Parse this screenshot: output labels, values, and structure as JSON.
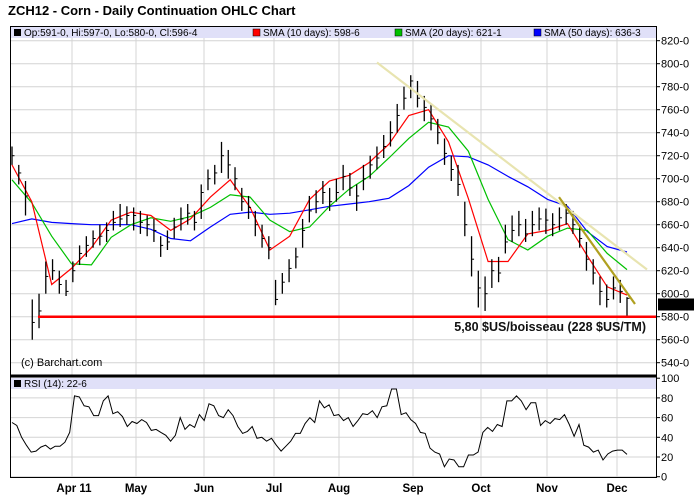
{
  "chart_data": {
    "type": "ohlc",
    "title": "ZCH12 - Corn - Daily Continuation OHLC Chart",
    "legend": {
      "ohlc": "Op:591-0, Hi:597-0, Lo:580-0, Cl:596-4",
      "sma10": "SMA (10 days): 598-6",
      "sma20": "SMA (20 days): 621-1",
      "sma50": "SMA (50 days): 636-3",
      "rsi": "RSI (14): 22-6"
    },
    "colors": {
      "bars": "#000000",
      "sma10": "#ff0000",
      "sma20": "#00c000",
      "sma50": "#0000ff",
      "support": "#ff0000",
      "trend_long": "#e8e4b0",
      "trend_short": "#b0a020",
      "panel_header": "#e0e0f8",
      "grid": "#d4d4d4"
    },
    "x_tick_labels": [
      "Apr 11",
      "May",
      "Jun",
      "Jul",
      "Aug",
      "Sep",
      "Oct",
      "Nov",
      "Dec"
    ],
    "price_axis": {
      "ylim": [
        530,
        830
      ],
      "ticks": [
        540,
        560,
        580,
        600,
        620,
        640,
        660,
        680,
        700,
        720,
        740,
        760,
        780,
        800,
        820
      ],
      "tick_labels": [
        "540-0",
        "560-0",
        "580-0",
        "600-0",
        "620-0",
        "640-0",
        "660-0",
        "680-0",
        "700-0",
        "720-0",
        "740-0",
        "760-0",
        "780-0",
        "800-0",
        "820-0"
      ],
      "last_price_label": "596-4",
      "last_price": 596.5
    },
    "rsi_axis": {
      "ylim": [
        0,
        100
      ],
      "ticks": [
        0,
        20,
        40,
        60,
        80,
        100
      ],
      "tick_labels": [
        "0",
        "20",
        "40",
        "60",
        "80",
        "100"
      ]
    },
    "bars_hlc": [
      [
        728,
        712,
        720
      ],
      [
        712,
        695,
        705
      ],
      [
        698,
        668,
        685
      ],
      [
        595,
        560,
        575
      ],
      [
        600,
        570,
        585
      ],
      [
        628,
        600,
        615
      ],
      [
        630,
        612,
        620
      ],
      [
        620,
        600,
        608
      ],
      [
        612,
        598,
        602
      ],
      [
        628,
        610,
        620
      ],
      [
        642,
        625,
        635
      ],
      [
        650,
        632,
        642
      ],
      [
        655,
        640,
        648
      ],
      [
        660,
        642,
        650
      ],
      [
        662,
        645,
        655
      ],
      [
        672,
        655,
        662
      ],
      [
        678,
        658,
        665
      ],
      [
        676,
        660,
        668
      ],
      [
        675,
        655,
        668
      ],
      [
        672,
        652,
        662
      ],
      [
        668,
        650,
        660
      ],
      [
        665,
        645,
        655
      ],
      [
        650,
        632,
        642
      ],
      [
        655,
        638,
        645
      ],
      [
        666,
        648,
        658
      ],
      [
        675,
        655,
        665
      ],
      [
        678,
        660,
        670
      ],
      [
        672,
        655,
        662
      ],
      [
        695,
        665,
        688
      ],
      [
        708,
        690,
        700
      ],
      [
        712,
        695,
        705
      ],
      [
        732,
        705,
        720
      ],
      [
        725,
        700,
        712
      ],
      [
        710,
        690,
        700
      ],
      [
        692,
        672,
        680
      ],
      [
        685,
        665,
        675
      ],
      [
        672,
        650,
        660
      ],
      [
        660,
        640,
        648
      ],
      [
        650,
        630,
        640
      ],
      [
        612,
        590,
        595
      ],
      [
        618,
        600,
        610
      ],
      [
        630,
        610,
        622
      ],
      [
        640,
        622,
        632
      ],
      [
        665,
        640,
        655
      ],
      [
        685,
        662,
        672
      ],
      [
        690,
        670,
        680
      ],
      [
        698,
        678,
        688
      ],
      [
        692,
        672,
        680
      ],
      [
        700,
        680,
        688
      ],
      [
        712,
        690,
        702
      ],
      [
        705,
        685,
        692
      ],
      [
        695,
        672,
        685
      ],
      [
        712,
        690,
        700
      ],
      [
        720,
        700,
        712
      ],
      [
        728,
        708,
        718
      ],
      [
        738,
        718,
        728
      ],
      [
        750,
        728,
        740
      ],
      [
        765,
        740,
        755
      ],
      [
        780,
        760,
        770
      ],
      [
        790,
        770,
        785
      ],
      [
        785,
        762,
        770
      ],
      [
        772,
        750,
        762
      ],
      [
        765,
        742,
        752
      ],
      [
        752,
        730,
        740
      ],
      [
        735,
        712,
        722
      ],
      [
        720,
        698,
        708
      ],
      [
        712,
        685,
        695
      ],
      [
        680,
        650,
        660
      ],
      [
        650,
        615,
        630
      ],
      [
        620,
        588,
        605
      ],
      [
        615,
        585,
        600
      ],
      [
        630,
        605,
        620
      ],
      [
        632,
        610,
        618
      ],
      [
        660,
        635,
        645
      ],
      [
        668,
        645,
        655
      ],
      [
        672,
        650,
        660
      ],
      [
        665,
        645,
        652
      ],
      [
        672,
        650,
        660
      ],
      [
        675,
        655,
        665
      ],
      [
        674,
        652,
        664
      ],
      [
        670,
        650,
        660
      ],
      [
        675,
        655,
        666
      ],
      [
        678,
        660,
        670
      ],
      [
        672,
        652,
        660
      ],
      [
        660,
        640,
        648
      ],
      [
        645,
        620,
        630
      ],
      [
        630,
        608,
        618
      ],
      [
        615,
        590,
        602
      ],
      [
        608,
        588,
        595
      ],
      [
        615,
        595,
        605
      ],
      [
        612,
        592,
        602
      ],
      [
        597,
        580,
        596
      ]
    ],
    "sma10": [
      712,
      680,
      608,
      622,
      640,
      664,
      671,
      668,
      655,
      665,
      684,
      699,
      675,
      638,
      650,
      682,
      698,
      703,
      714,
      730,
      755,
      760,
      732,
      683,
      628,
      628,
      652,
      655,
      661,
      633,
      606,
      598.75
    ],
    "sma20": [
      699,
      679,
      650,
      626,
      625,
      649,
      660,
      666,
      663,
      667,
      675,
      686,
      684,
      664,
      654,
      658,
      676,
      691,
      702,
      718,
      735,
      749,
      745,
      724,
      682,
      647,
      638,
      650,
      657,
      655,
      635,
      621
    ],
    "sma50": [
      661,
      665,
      662,
      661,
      660,
      660,
      660,
      656,
      648,
      646,
      658,
      669,
      671,
      669,
      670,
      673,
      676,
      678,
      680,
      683,
      694,
      710,
      720,
      719,
      712,
      702,
      693,
      682,
      676,
      654,
      641,
      636.25
    ],
    "rsi": [
      55,
      52,
      40,
      32,
      25,
      26,
      30,
      32,
      28,
      31,
      31,
      35,
      45,
      82,
      81,
      72,
      71,
      62,
      62,
      77,
      82,
      64,
      66,
      61,
      51,
      56,
      54,
      58,
      55,
      47,
      48,
      45,
      42,
      36,
      42,
      60,
      48,
      53,
      50,
      63,
      57,
      74,
      72,
      62,
      60,
      68,
      62,
      51,
      44,
      46,
      51,
      39,
      40,
      36,
      39,
      32,
      26,
      31,
      36,
      44,
      44,
      54,
      60,
      55,
      77,
      70,
      73,
      62,
      63,
      57,
      60,
      51,
      57,
      64,
      63,
      67,
      60,
      71,
      72,
      89,
      89,
      63,
      65,
      58,
      54,
      45,
      44,
      29,
      25,
      23,
      10,
      18,
      17,
      10,
      10,
      22,
      22,
      25,
      45,
      50,
      46,
      53,
      51,
      77,
      77,
      82,
      77,
      68,
      75,
      75,
      52,
      57,
      54,
      59,
      58,
      63,
      53,
      41,
      53,
      32,
      30,
      25,
      27,
      17,
      23,
      26,
      27,
      27,
      22.6
    ],
    "support_line": {
      "value": 580,
      "label": "5,80 $US/boisseau (228 $US/TM)"
    },
    "trend_lines": [
      {
        "name": "long-downtrend",
        "from": 801,
        "to": 621
      },
      {
        "name": "short-downtrend",
        "from": 684,
        "to": 591
      }
    ],
    "copyright": "(c) Barchart.com",
    "grid": true
  }
}
